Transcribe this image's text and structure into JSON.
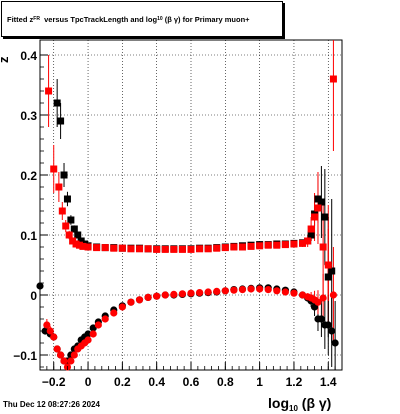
{
  "title": {
    "prefix": "Fitted",
    "z": "z",
    "z_sub": "FR",
    "mid": "versus TpcTrackLength and log",
    "log_sub": "10",
    "paren": "(β γ)",
    "suffix": "for Primary muon+"
  },
  "footer": {
    "date": "Thu Dec 12 08:27:26 2024"
  },
  "chart_data": {
    "type": "scatter",
    "xlabel": "log10(β γ)",
    "ylabel": "z",
    "xlim": [
      -0.28,
      1.48
    ],
    "ylim": [
      -0.125,
      0.425
    ],
    "x_ticks": [
      -0.2,
      0,
      0.2,
      0.4,
      0.6,
      0.8,
      1.0,
      1.2,
      1.4
    ],
    "x_tick_labels": [
      "−0.2",
      "0",
      "0.2",
      "0.4",
      "0.6",
      "0.8",
      "1",
      "1.2",
      "1.4"
    ],
    "y_ticks": [
      -0.1,
      0,
      0.1,
      0.2,
      0.3,
      0.4
    ],
    "y_tick_labels": [
      "−0.1",
      "0",
      "0.1",
      "0.2",
      "0.3",
      "0.4"
    ],
    "grid": true,
    "colors": {
      "black": "#000000",
      "red": "#ff0000"
    },
    "series": [
      {
        "color": "black",
        "marker": "square",
        "x": [
          -0.18,
          -0.16,
          -0.14,
          -0.12,
          -0.1,
          -0.08,
          -0.06,
          -0.04,
          -0.02,
          0.0,
          0.05,
          0.1,
          0.15,
          0.2,
          0.25,
          0.3,
          0.35,
          0.4,
          0.45,
          0.5,
          0.55,
          0.6,
          0.65,
          0.7,
          0.75,
          0.8,
          0.85,
          0.9,
          0.95,
          1.0,
          1.05,
          1.1,
          1.15,
          1.2,
          1.25,
          1.28,
          1.3,
          1.32,
          1.34,
          1.36,
          1.38,
          1.4,
          1.42
        ],
        "y": [
          0.32,
          0.29,
          0.2,
          0.16,
          0.125,
          0.11,
          0.1,
          0.09,
          0.085,
          0.082,
          0.08,
          0.079,
          0.079,
          0.078,
          0.078,
          0.078,
          0.077,
          0.077,
          0.077,
          0.077,
          0.077,
          0.077,
          0.078,
          0.078,
          0.079,
          0.08,
          0.081,
          0.082,
          0.083,
          0.084,
          0.084,
          0.085,
          0.085,
          0.086,
          0.087,
          0.09,
          0.1,
          0.135,
          0.16,
          0.155,
          0.13,
          0.03,
          0.04
        ],
        "yerr": [
          0.04,
          0.03,
          0.02,
          0.012,
          0.008,
          0.006,
          0.005,
          0.004,
          0.003,
          0.002,
          0.002,
          0.002,
          0.002,
          0.002,
          0.002,
          0.002,
          0.002,
          0.002,
          0.002,
          0.002,
          0.002,
          0.002,
          0.002,
          0.002,
          0.002,
          0.002,
          0.002,
          0.002,
          0.002,
          0.002,
          0.002,
          0.002,
          0.002,
          0.003,
          0.004,
          0.006,
          0.01,
          0.02,
          0.04,
          0.06,
          0.08,
          0.1,
          0.12
        ]
      },
      {
        "color": "red",
        "marker": "square",
        "x": [
          -0.23,
          -0.2,
          -0.17,
          -0.15,
          -0.13,
          -0.11,
          -0.09,
          -0.07,
          -0.05,
          -0.03,
          0.0,
          0.05,
          0.1,
          0.15,
          0.2,
          0.25,
          0.3,
          0.35,
          0.4,
          0.45,
          0.5,
          0.55,
          0.6,
          0.65,
          0.7,
          0.75,
          0.8,
          0.85,
          0.9,
          0.95,
          1.0,
          1.05,
          1.1,
          1.15,
          1.2,
          1.25,
          1.28,
          1.3,
          1.32,
          1.34,
          1.37,
          1.4,
          1.43
        ],
        "y": [
          0.34,
          0.21,
          0.18,
          0.14,
          0.115,
          0.1,
          0.09,
          0.085,
          0.083,
          0.081,
          0.08,
          0.079,
          0.079,
          0.078,
          0.078,
          0.077,
          0.077,
          0.077,
          0.076,
          0.076,
          0.076,
          0.076,
          0.076,
          0.077,
          0.077,
          0.078,
          0.079,
          0.08,
          0.08,
          0.081,
          0.082,
          0.083,
          0.083,
          0.084,
          0.085,
          0.086,
          0.09,
          0.11,
          0.13,
          0.145,
          0.08,
          0.05,
          0.36
        ],
        "yerr": [
          0.06,
          0.04,
          0.025,
          0.015,
          0.01,
          0.007,
          0.005,
          0.004,
          0.003,
          0.003,
          0.002,
          0.002,
          0.002,
          0.002,
          0.002,
          0.002,
          0.002,
          0.002,
          0.002,
          0.002,
          0.002,
          0.002,
          0.002,
          0.002,
          0.002,
          0.002,
          0.002,
          0.002,
          0.002,
          0.002,
          0.002,
          0.002,
          0.002,
          0.003,
          0.004,
          0.006,
          0.01,
          0.02,
          0.04,
          0.06,
          0.08,
          0.1,
          0.12
        ]
      },
      {
        "color": "black",
        "marker": "circle",
        "x": [
          -0.28,
          -0.25,
          -0.22,
          -0.2,
          -0.18,
          -0.16,
          -0.14,
          -0.12,
          -0.1,
          -0.08,
          -0.06,
          -0.04,
          -0.02,
          0.0,
          0.03,
          0.06,
          0.1,
          0.15,
          0.2,
          0.25,
          0.3,
          0.35,
          0.4,
          0.45,
          0.5,
          0.55,
          0.6,
          0.65,
          0.7,
          0.75,
          0.8,
          0.85,
          0.9,
          0.95,
          1.0,
          1.05,
          1.1,
          1.15,
          1.2,
          1.25,
          1.28,
          1.3,
          1.32,
          1.34,
          1.36,
          1.38,
          1.4,
          1.42,
          1.44
        ],
        "y": [
          0.015,
          -0.06,
          -0.065,
          -0.07,
          -0.09,
          -0.1,
          -0.11,
          -0.11,
          -0.1,
          -0.09,
          -0.085,
          -0.075,
          -0.07,
          -0.065,
          -0.055,
          -0.045,
          -0.035,
          -0.025,
          -0.018,
          -0.012,
          -0.008,
          -0.004,
          -0.002,
          0.0,
          0.0,
          0.001,
          0.002,
          0.003,
          0.004,
          0.005,
          0.007,
          0.009,
          0.01,
          0.011,
          0.012,
          0.012,
          0.01,
          0.008,
          0.005,
          0.0,
          -0.005,
          -0.01,
          -0.02,
          -0.04,
          -0.04,
          -0.05,
          -0.05,
          -0.06,
          -0.08
        ],
        "yerr": [
          0.01,
          0.006,
          0.005,
          0.005,
          0.004,
          0.004,
          0.004,
          0.003,
          0.003,
          0.003,
          0.003,
          0.002,
          0.002,
          0.002,
          0.002,
          0.002,
          0.002,
          0.002,
          0.002,
          0.002,
          0.002,
          0.002,
          0.002,
          0.002,
          0.002,
          0.002,
          0.002,
          0.002,
          0.002,
          0.002,
          0.002,
          0.002,
          0.002,
          0.002,
          0.002,
          0.002,
          0.002,
          0.002,
          0.003,
          0.004,
          0.006,
          0.01,
          0.015,
          0.02,
          0.03,
          0.04,
          0.05,
          0.06,
          0.07
        ]
      },
      {
        "color": "red",
        "marker": "circle",
        "x": [
          -0.24,
          -0.22,
          -0.2,
          -0.18,
          -0.16,
          -0.14,
          -0.12,
          -0.1,
          -0.08,
          -0.06,
          -0.04,
          -0.02,
          0.0,
          0.03,
          0.06,
          0.1,
          0.15,
          0.2,
          0.25,
          0.3,
          0.35,
          0.4,
          0.45,
          0.5,
          0.55,
          0.6,
          0.65,
          0.7,
          0.75,
          0.8,
          0.85,
          0.9,
          0.95,
          1.0,
          1.05,
          1.1,
          1.15,
          1.2,
          1.25,
          1.28,
          1.3,
          1.32,
          1.34,
          1.37,
          1.4,
          1.43
        ],
        "y": [
          -0.05,
          -0.06,
          -0.07,
          -0.09,
          -0.1,
          -0.11,
          -0.12,
          -0.11,
          -0.1,
          -0.09,
          -0.085,
          -0.08,
          -0.075,
          -0.065,
          -0.05,
          -0.04,
          -0.03,
          -0.02,
          -0.012,
          -0.008,
          -0.004,
          -0.002,
          0.0,
          0.001,
          0.002,
          0.003,
          0.004,
          0.005,
          0.006,
          0.007,
          0.008,
          0.009,
          0.01,
          0.01,
          0.009,
          0.007,
          0.005,
          0.003,
          0.0,
          -0.003,
          -0.005,
          -0.008,
          -0.012,
          -0.005,
          0.05,
          0.0
        ],
        "yerr": [
          0.01,
          0.008,
          0.006,
          0.005,
          0.005,
          0.004,
          0.004,
          0.003,
          0.003,
          0.003,
          0.003,
          0.002,
          0.002,
          0.002,
          0.002,
          0.002,
          0.002,
          0.002,
          0.002,
          0.002,
          0.002,
          0.002,
          0.002,
          0.002,
          0.002,
          0.002,
          0.002,
          0.002,
          0.002,
          0.002,
          0.002,
          0.002,
          0.002,
          0.002,
          0.002,
          0.002,
          0.002,
          0.003,
          0.004,
          0.006,
          0.01,
          0.015,
          0.02,
          0.04,
          0.06,
          0.08
        ]
      }
    ]
  }
}
